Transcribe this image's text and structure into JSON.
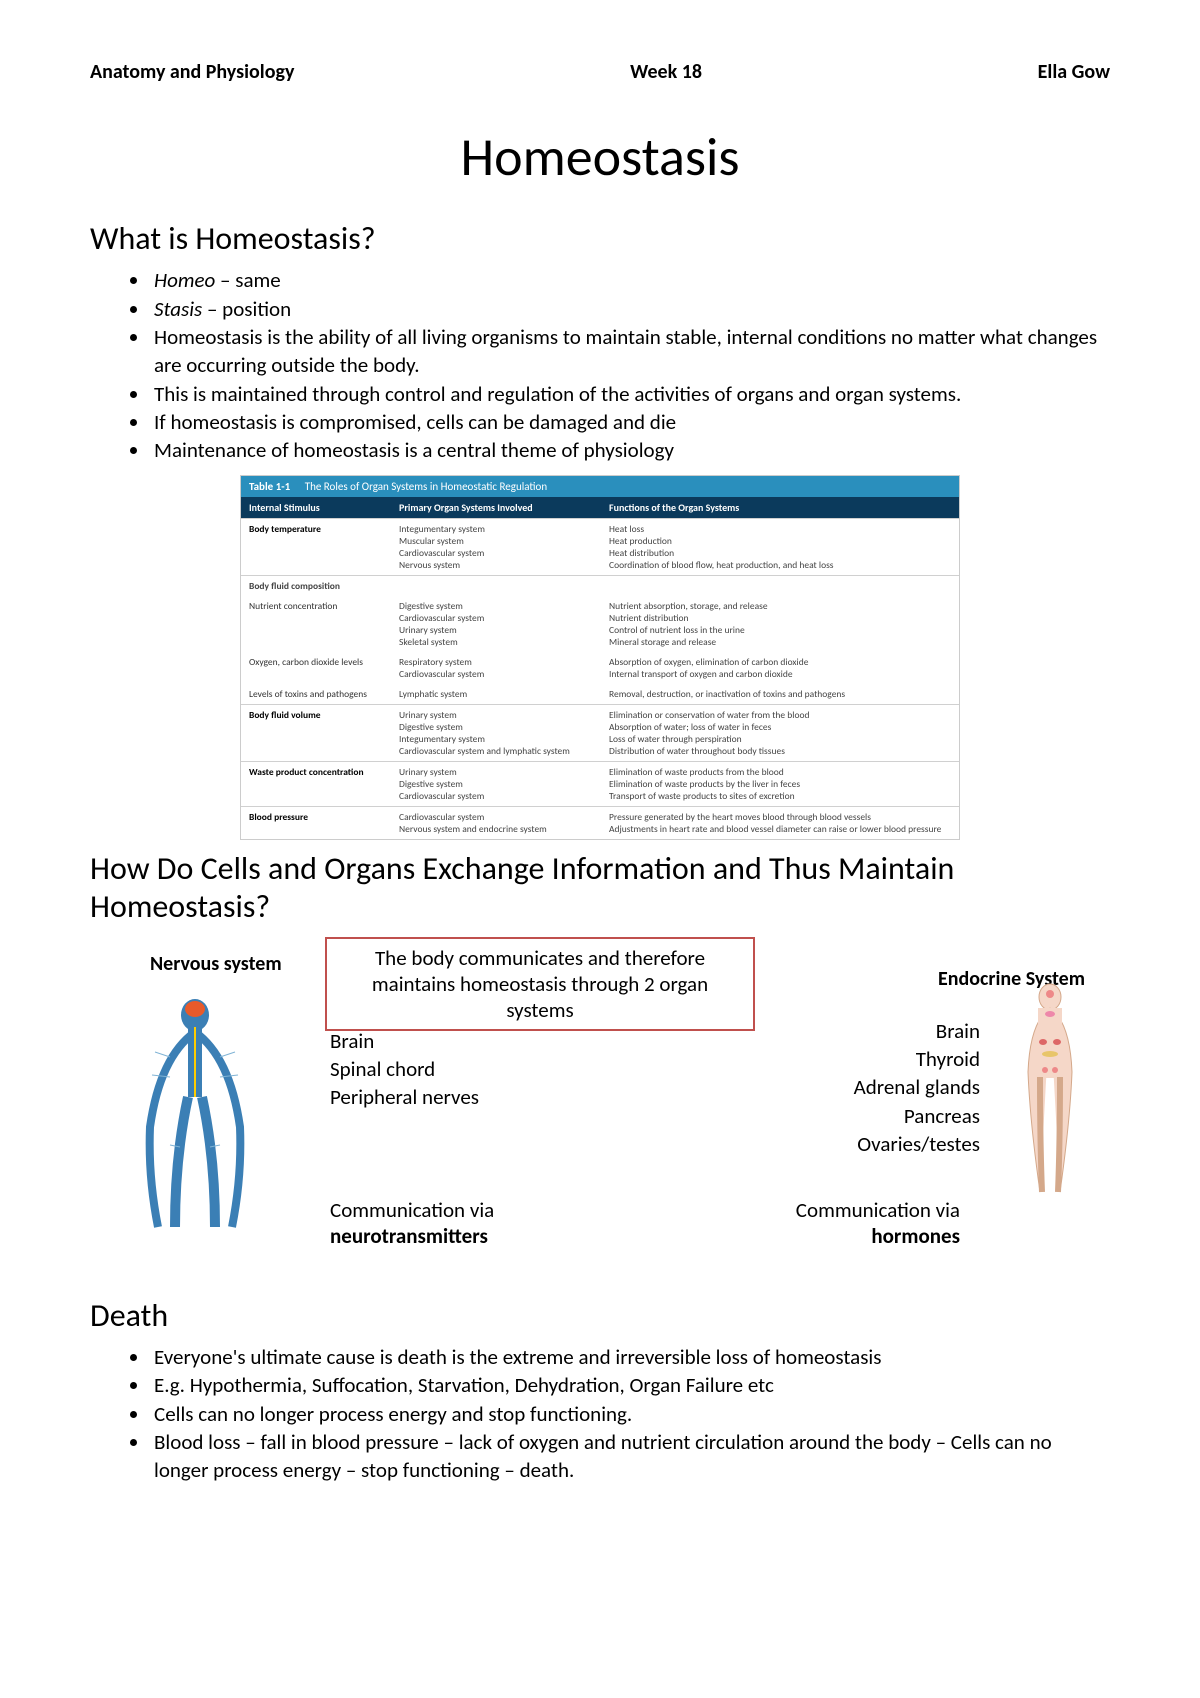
{
  "header": {
    "left": "Anatomy and Physiology",
    "center": "Week 18",
    "right": "Ella Gow"
  },
  "title": "Homeostasis",
  "section1": {
    "heading": "What is Homeostasis?",
    "bullets": [
      {
        "prefix": "Homeo",
        "text": " – same",
        "italic_prefix": true
      },
      {
        "prefix": "Stasis",
        "text": " – position",
        "italic_prefix": true
      },
      {
        "prefix": "",
        "text": "Homeostasis is the ability of all living organisms to maintain stable, internal conditions no matter what changes are occurring outside the body.",
        "italic_prefix": false
      },
      {
        "prefix": "",
        "text": "This is maintained through control and regulation of the activities of organs and organ systems.",
        "italic_prefix": false
      },
      {
        "prefix": "",
        "text": "If homeostasis is compromised, cells can be damaged and die",
        "italic_prefix": false
      },
      {
        "prefix": "",
        "text": "Maintenance of homeostasis is a central theme of physiology",
        "italic_prefix": false
      }
    ]
  },
  "table": {
    "label": "Table 1-1",
    "caption": "The Roles of Organ Systems in Homeostatic Regulation",
    "columns": [
      "Internal Stimulus",
      "Primary Organ Systems Involved",
      "Functions of the Organ Systems"
    ],
    "rows": [
      {
        "stimulus": "Body temperature",
        "systems": "Integumentary system\nMuscular system\nCardiovascular system\nNervous system",
        "functions": "Heat loss\nHeat production\nHeat distribution\nCoordination of blood flow, heat production, and heat loss"
      },
      {
        "stimulus": "Body fluid composition",
        "subrows": [
          {
            "label": "Nutrient concentration",
            "systems": "Digestive system\nCardiovascular system\nUrinary system\nSkeletal system",
            "functions": "Nutrient absorption, storage, and release\nNutrient distribution\nControl of nutrient loss in the urine\nMineral storage and release"
          },
          {
            "label": "Oxygen, carbon dioxide levels",
            "systems": "Respiratory system\nCardiovascular system",
            "functions": "Absorption of oxygen, elimination of carbon dioxide\nInternal transport of oxygen and carbon dioxide"
          },
          {
            "label": "Levels of toxins and pathogens",
            "systems": "Lymphatic system",
            "functions": "Removal, destruction, or inactivation of toxins and pathogens"
          }
        ]
      },
      {
        "stimulus": "Body fluid volume",
        "systems": "Urinary system\nDigestive system\nIntegumentary system\nCardiovascular system and lymphatic system",
        "functions": "Elimination or conservation of water from the blood\nAbsorption of water; loss of water in feces\nLoss of water through perspiration\nDistribution of water throughout body tissues"
      },
      {
        "stimulus": "Waste product concentration",
        "systems": "Urinary system\nDigestive system\nCardiovascular system",
        "functions": "Elimination of waste products from the blood\nElimination of waste products by the liver in feces\nTransport of waste products to sites of excretion"
      },
      {
        "stimulus": "Blood pressure",
        "systems": "Cardiovascular system\nNervous system and endocrine system",
        "functions": "Pressure generated by the heart moves blood through blood vessels\nAdjustments in heart rate and blood vessel diameter can raise or lower blood pressure"
      }
    ]
  },
  "section2": {
    "heading": "How Do Cells and Organs Exchange Information and Thus Maintain Homeostasis?",
    "box_text": "The body communicates and therefore maintains homeostasis through 2 organ systems",
    "nervous": {
      "label": "Nervous system",
      "components": [
        "Brain",
        "Spinal chord",
        "Peripheral nerves"
      ],
      "via_prefix": "Communication via",
      "via_bold": "neurotransmitters"
    },
    "endocrine": {
      "label": "Endocrine System",
      "components": [
        "Brain",
        "Thyroid",
        "Adrenal glands",
        "Pancreas",
        "Ovaries/testes"
      ],
      "via_prefix": "Communication via",
      "via_bold": "hormones"
    }
  },
  "section3": {
    "heading": "Death",
    "bullets": [
      "Everyone's ultimate cause is death is the extreme and irreversible loss of homeostasis",
      "E.g. Hypothermia, Suffocation, Starvation, Dehydration, Organ Failure etc",
      "Cells can no longer process energy and stop functioning.",
      "Blood loss – fall in blood pressure – lack of oxygen and nutrient circulation around the body – Cells can no longer process energy – stop functioning – death."
    ]
  },
  "colors": {
    "table_header_bg": "#2a8fbd",
    "table_thead_bg": "#0b3a5c",
    "box_border": "#c0504d",
    "nervous_body": "#3b7fb5",
    "endocrine_body": "#f5d7c8"
  }
}
